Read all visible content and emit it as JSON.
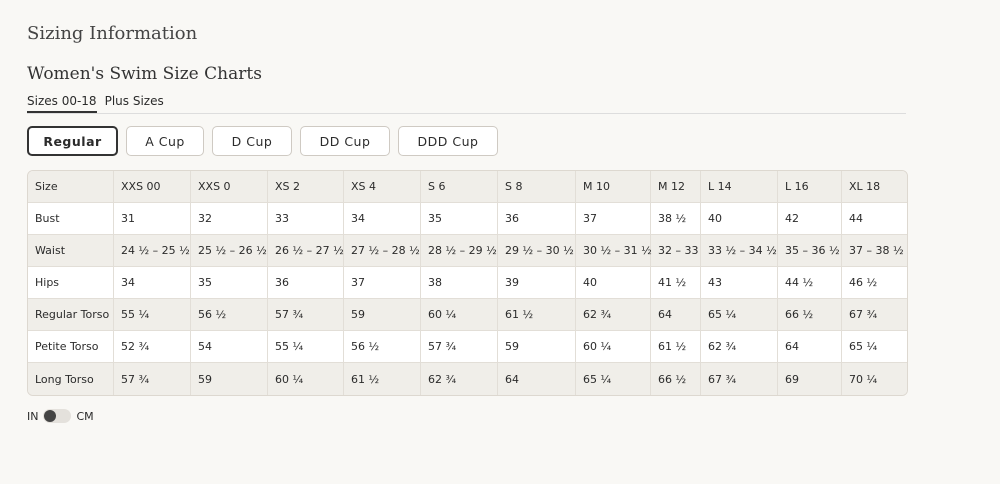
{
  "header": {
    "title": "Sizing Information",
    "subtitle": "Women's Swim Size Charts"
  },
  "tabs": [
    {
      "label": "Sizes 00-18",
      "active": true
    },
    {
      "label": "Plus Sizes",
      "active": false
    }
  ],
  "cup_buttons": [
    {
      "label": "Regular",
      "active": true
    },
    {
      "label": "A Cup",
      "active": false
    },
    {
      "label": "D Cup",
      "active": false
    },
    {
      "label": "DD Cup",
      "active": false
    },
    {
      "label": "DDD Cup",
      "active": false
    }
  ],
  "table": {
    "header": [
      "Size",
      "XXS 00",
      "XXS 0",
      "XS 2",
      "XS 4",
      "S 6",
      "S 8",
      "M 10",
      "M 12",
      "L 14",
      "L 16",
      "XL 18"
    ],
    "rows": [
      [
        "Bust",
        "31",
        "32",
        "33",
        "34",
        "35",
        "36",
        "37",
        "38 ½",
        "40",
        "42",
        "44"
      ],
      [
        "Waist",
        "24 ½ – 25 ½",
        "25 ½ – 26 ½",
        "26 ½ – 27 ½",
        "27 ½ – 28 ½",
        "28 ½ – 29 ½",
        "29 ½ – 30 ½",
        "30 ½ – 31 ½",
        "32 – 33",
        "33 ½ – 34 ½",
        "35 – 36 ½",
        "37 – 38 ½"
      ],
      [
        "Hips",
        "34",
        "35",
        "36",
        "37",
        "38",
        "39",
        "40",
        "41 ½",
        "43",
        "44 ½",
        "46 ½"
      ],
      [
        "Regular Torso",
        "55 ¼",
        "56 ½",
        "57 ¾",
        "59",
        "60 ¼",
        "61 ½",
        "62 ¾",
        "64",
        "65 ¼",
        "66 ½",
        "67 ¾"
      ],
      [
        "Petite Torso",
        "52 ¾",
        "54",
        "55 ¼",
        "56 ½",
        "57 ¾",
        "59",
        "60 ¼",
        "61 ½",
        "62 ¾",
        "64",
        "65 ¼"
      ],
      [
        "Long Torso",
        "57 ¾",
        "59",
        "60 ¼",
        "61 ½",
        "62 ¾",
        "64",
        "65 ¼",
        "66 ½",
        "67 ¾",
        "69",
        "70 ¼"
      ]
    ]
  },
  "unit_toggle": {
    "left": "IN",
    "right": "CM"
  }
}
